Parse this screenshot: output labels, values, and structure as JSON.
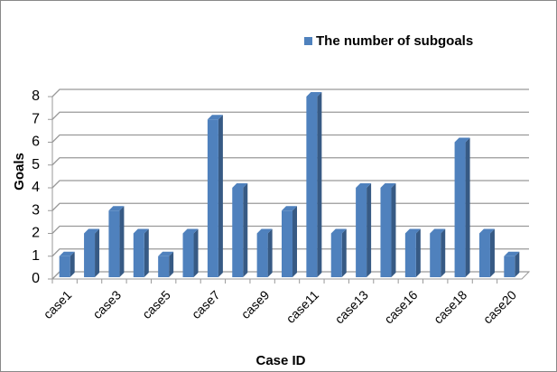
{
  "chart_data": {
    "type": "bar3d",
    "legend": "The number of subgoals",
    "x_label": "Case ID",
    "y_label": "Goals",
    "categories": [
      "case1",
      null,
      "case3",
      null,
      "case5",
      null,
      "case7",
      null,
      "case9",
      null,
      "case11",
      null,
      "case13",
      null,
      "case16",
      null,
      "case18",
      null,
      "case20"
    ],
    "values": [
      1,
      2,
      3,
      2,
      1,
      2,
      7,
      4,
      2,
      3,
      8,
      2,
      4,
      4,
      2,
      2,
      6,
      2,
      1
    ],
    "color": "#4f81bd",
    "ylim": [
      0,
      8
    ],
    "yticks": [
      0,
      1,
      2,
      3,
      4,
      5,
      6,
      7,
      8
    ],
    "grid": true,
    "legend_position": "top"
  }
}
